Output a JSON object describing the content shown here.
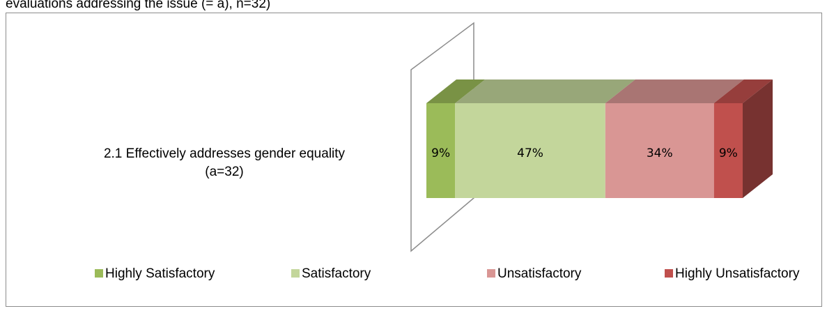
{
  "chart_data": {
    "type": "bar3d_stacked_horizontal",
    "title": "evaluations addressing the issue (= a), n=32)",
    "categories": [
      "2.1 Effectively addresses gender equality (a=32)"
    ],
    "series": [
      {
        "name": "Highly Satisfactory",
        "color": "#9bbb59",
        "values": [
          9
        ],
        "value_labels": [
          "9%"
        ]
      },
      {
        "name": "Satisfactory",
        "color": "#c3d69b",
        "values": [
          47
        ],
        "value_labels": [
          "47%"
        ]
      },
      {
        "name": "Unsatisfactory",
        "color": "#d99694",
        "values": [
          34
        ],
        "value_labels": [
          "34%"
        ]
      },
      {
        "name": "Highly Unsatisfactory",
        "color": "#c0504d",
        "values": [
          9
        ],
        "value_labels": [
          "9%"
        ]
      }
    ],
    "legend": "bottom"
  }
}
